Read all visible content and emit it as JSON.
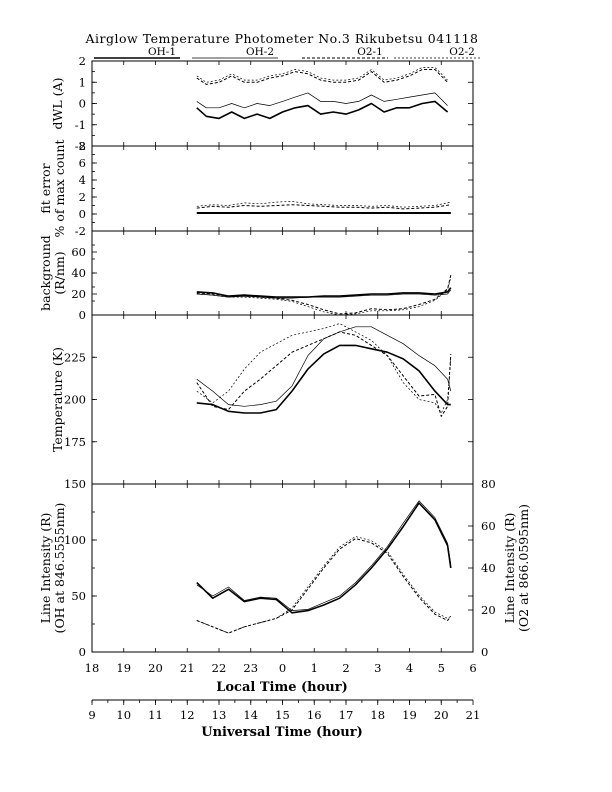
{
  "title": "Airglow Temperature Photometer No.3  Rikubetsu   041118",
  "legend": [
    {
      "name": "OH-1",
      "style": "solid-thick"
    },
    {
      "name": "OH-2",
      "style": "solid-thin"
    },
    {
      "name": "O2-1",
      "style": "dashed"
    },
    {
      "name": "O2-2",
      "style": "dotted"
    }
  ],
  "x_axes": {
    "local_time": {
      "label": "Local Time (hour)",
      "ticks": [
        "18",
        "19",
        "20",
        "21",
        "22",
        "23",
        "0",
        "1",
        "2",
        "3",
        "4",
        "5",
        "6"
      ]
    },
    "universal_time": {
      "label": "Universal Time (hour)",
      "ticks": [
        "9",
        "10",
        "11",
        "12",
        "13",
        "14",
        "15",
        "16",
        "17",
        "18",
        "19",
        "20",
        "21"
      ]
    }
  },
  "chart_data": [
    {
      "type": "line",
      "panel": "dwl",
      "ylabel": "dWL (A)",
      "ylim": [
        -2,
        2
      ],
      "yticks": [
        "2",
        "1",
        "0",
        "-1",
        "-2"
      ],
      "x_unit": "universal time (hour)",
      "series": [
        {
          "name": "OH-1",
          "x": [
            12.3,
            12.6,
            13.0,
            13.4,
            13.8,
            14.2,
            14.6,
            15.0,
            15.4,
            15.8,
            16.2,
            16.6,
            17.0,
            17.4,
            17.8,
            18.2,
            18.6,
            19.0,
            19.4,
            19.8,
            20.2
          ],
          "y": [
            -0.2,
            -0.6,
            -0.7,
            -0.4,
            -0.7,
            -0.5,
            -0.7,
            -0.4,
            -0.2,
            -0.1,
            -0.5,
            -0.4,
            -0.5,
            -0.3,
            0.0,
            -0.4,
            -0.2,
            -0.2,
            0.0,
            0.1,
            -0.4
          ]
        },
        {
          "name": "OH-2",
          "x": [
            12.3,
            12.6,
            13.0,
            13.4,
            13.8,
            14.2,
            14.6,
            15.0,
            15.4,
            15.8,
            16.2,
            16.6,
            17.0,
            17.4,
            17.8,
            18.2,
            18.6,
            19.0,
            19.4,
            19.8,
            20.2
          ],
          "y": [
            0.1,
            -0.2,
            -0.2,
            0.0,
            -0.2,
            0.0,
            -0.1,
            0.1,
            0.3,
            0.5,
            0.1,
            0.1,
            0.0,
            0.1,
            0.4,
            0.1,
            0.2,
            0.3,
            0.4,
            0.5,
            -0.1
          ]
        },
        {
          "name": "O2-1",
          "x": [
            12.3,
            12.6,
            13.0,
            13.4,
            13.8,
            14.2,
            14.6,
            15.0,
            15.4,
            15.8,
            16.2,
            16.6,
            17.0,
            17.4,
            17.8,
            18.2,
            18.6,
            19.0,
            19.4,
            19.8,
            20.2
          ],
          "y": [
            1.2,
            0.9,
            1.0,
            1.3,
            1.0,
            1.0,
            1.2,
            1.3,
            1.5,
            1.4,
            1.1,
            1.0,
            1.0,
            1.1,
            1.5,
            1.0,
            1.1,
            1.3,
            1.6,
            1.6,
            1.0
          ]
        },
        {
          "name": "O2-2",
          "x": [
            12.3,
            12.6,
            13.0,
            13.4,
            13.8,
            14.2,
            14.6,
            15.0,
            15.4,
            15.8,
            16.2,
            16.6,
            17.0,
            17.4,
            17.8,
            18.2,
            18.6,
            19.0,
            19.4,
            19.8,
            20.2
          ],
          "y": [
            1.3,
            1.0,
            1.1,
            1.4,
            1.1,
            1.1,
            1.3,
            1.4,
            1.6,
            1.5,
            1.2,
            1.1,
            1.1,
            1.2,
            1.6,
            1.1,
            1.2,
            1.4,
            1.7,
            1.7,
            1.1
          ]
        }
      ]
    },
    {
      "type": "line",
      "panel": "fit_error",
      "ylabel": [
        "fit error",
        "% of max count"
      ],
      "ylim": [
        -2,
        8
      ],
      "yticks": [
        "8",
        "6",
        "4",
        "2",
        "0",
        "-2"
      ],
      "x_unit": "universal time (hour)",
      "series": [
        {
          "name": "OH-1",
          "x": [
            12.3,
            13.5,
            15.0,
            16.5,
            18.0,
            19.5,
            20.3
          ],
          "y": [
            0.1,
            0.1,
            0.1,
            0.1,
            0.1,
            0.1,
            0.1
          ]
        },
        {
          "name": "OH-2",
          "x": [
            12.3,
            13.5,
            15.0,
            16.5,
            18.0,
            19.5,
            20.3
          ],
          "y": [
            0.2,
            0.2,
            0.2,
            0.2,
            0.2,
            0.2,
            0.2
          ]
        },
        {
          "name": "O2-1",
          "x": [
            12.3,
            12.8,
            13.3,
            13.8,
            14.3,
            14.8,
            15.3,
            15.8,
            16.3,
            16.8,
            17.3,
            17.8,
            18.3,
            18.8,
            19.3,
            19.8,
            20.3
          ],
          "y": [
            0.7,
            0.9,
            0.8,
            1.0,
            0.9,
            1.0,
            1.1,
            1.0,
            0.9,
            0.8,
            0.8,
            0.7,
            0.8,
            0.6,
            0.7,
            0.8,
            1.1
          ]
        },
        {
          "name": "O2-2",
          "x": [
            12.3,
            12.8,
            13.3,
            13.8,
            14.3,
            14.8,
            15.3,
            15.8,
            16.3,
            16.8,
            17.3,
            17.8,
            18.3,
            18.8,
            19.3,
            19.8,
            20.3
          ],
          "y": [
            0.9,
            1.1,
            1.0,
            1.3,
            1.2,
            1.4,
            1.5,
            1.2,
            1.1,
            1.0,
            1.0,
            0.9,
            1.0,
            0.8,
            0.9,
            1.0,
            1.4
          ]
        }
      ]
    },
    {
      "type": "line",
      "panel": "background",
      "ylabel": [
        "background",
        "(R/nm)"
      ],
      "ylim": [
        0,
        80
      ],
      "yticks": [
        "60",
        "40",
        "20",
        "0"
      ],
      "x_unit": "universal time (hour)",
      "series": [
        {
          "name": "OH-1",
          "x": [
            12.3,
            12.8,
            13.3,
            13.8,
            14.3,
            14.8,
            15.3,
            15.8,
            16.3,
            16.8,
            17.3,
            17.8,
            18.3,
            18.8,
            19.3,
            19.8,
            20.2,
            20.3
          ],
          "y": [
            22,
            21,
            18,
            19,
            18,
            17,
            17,
            17,
            18,
            18,
            19,
            20,
            20,
            21,
            21,
            20,
            22,
            26
          ]
        },
        {
          "name": "OH-2",
          "x": [
            12.3,
            12.8,
            13.3,
            13.8,
            14.3,
            14.8,
            15.3,
            15.8,
            16.3,
            16.8,
            17.3,
            17.8,
            18.3,
            18.8,
            19.3,
            19.8,
            20.2,
            20.3
          ],
          "y": [
            20,
            19,
            17,
            18,
            17,
            16,
            16,
            17,
            17,
            17,
            18,
            19,
            19,
            20,
            20,
            19,
            20,
            24
          ]
        },
        {
          "name": "O2-1",
          "x": [
            12.3,
            12.8,
            13.3,
            13.8,
            14.3,
            14.8,
            15.3,
            15.8,
            16.3,
            16.8,
            17.3,
            17.8,
            18.3,
            18.8,
            19.3,
            19.8,
            20.2,
            20.3
          ],
          "y": [
            21,
            20,
            18,
            18,
            17,
            16,
            14,
            10,
            5,
            1,
            2,
            6,
            5,
            6,
            10,
            15,
            25,
            38
          ]
        },
        {
          "name": "O2-2",
          "x": [
            12.3,
            12.8,
            13.3,
            13.8,
            14.3,
            14.8,
            15.3,
            15.8,
            16.3,
            16.8,
            17.3,
            17.8,
            18.3,
            18.8,
            19.3,
            19.8,
            20.2,
            20.3
          ],
          "y": [
            20,
            19,
            17,
            17,
            16,
            15,
            13,
            8,
            3,
            0,
            1,
            4,
            4,
            5,
            8,
            14,
            24,
            36
          ]
        }
      ]
    },
    {
      "type": "line",
      "panel": "temperature",
      "ylabel": "Temperature (K)",
      "ylim": [
        150,
        250
      ],
      "yticks": [
        "225",
        "200",
        "175"
      ],
      "x_unit": "universal time (hour)",
      "series": [
        {
          "name": "OH-1",
          "x": [
            12.3,
            12.8,
            13.3,
            13.8,
            14.3,
            14.8,
            15.3,
            15.8,
            16.3,
            16.8,
            17.3,
            17.8,
            18.3,
            18.8,
            19.3,
            19.8,
            20.2,
            20.3
          ],
          "y": [
            198,
            197,
            193,
            192,
            192,
            194,
            205,
            218,
            227,
            232,
            232,
            230,
            228,
            224,
            217,
            205,
            197,
            197
          ]
        },
        {
          "name": "OH-2",
          "x": [
            12.3,
            12.8,
            13.3,
            13.8,
            14.3,
            14.8,
            15.3,
            15.8,
            16.3,
            16.8,
            17.3,
            17.8,
            18.3,
            18.8,
            19.3,
            19.8,
            20.2,
            20.3
          ],
          "y": [
            212,
            205,
            197,
            196,
            197,
            199,
            208,
            226,
            236,
            240,
            243,
            243,
            238,
            233,
            226,
            220,
            212,
            205
          ]
        },
        {
          "name": "O2-1",
          "x": [
            12.3,
            12.8,
            13.3,
            13.8,
            14.3,
            14.8,
            15.3,
            15.8,
            16.3,
            16.8,
            17.3,
            17.8,
            18.3,
            18.8,
            19.3,
            19.8,
            20.0,
            20.2,
            20.3
          ],
          "y": [
            210,
            196,
            194,
            205,
            212,
            220,
            228,
            232,
            236,
            240,
            238,
            232,
            226,
            214,
            202,
            203,
            190,
            196,
            227
          ]
        },
        {
          "name": "O2-2",
          "x": [
            12.3,
            12.8,
            13.3,
            13.8,
            14.3,
            14.8,
            15.3,
            15.8,
            16.3,
            16.8,
            17.3,
            17.8,
            18.3,
            18.8,
            19.3,
            19.8,
            20.0,
            20.2,
            20.3
          ],
          "y": [
            205,
            198,
            205,
            218,
            228,
            233,
            238,
            240,
            242,
            245,
            240,
            235,
            226,
            210,
            200,
            198,
            192,
            200,
            224
          ]
        }
      ]
    },
    {
      "type": "line",
      "panel": "line_intensity",
      "ylabel": [
        "Line Intensity (R)",
        "(OH at 846.5555nm)"
      ],
      "ylim": [
        0,
        150
      ],
      "yticks": [
        "150",
        "100",
        "50",
        "0"
      ],
      "y2label": [
        "Line Intensity (R)",
        "(O2 at 866.0595nm)"
      ],
      "y2lim": [
        0,
        80
      ],
      "y2ticks": [
        "80",
        "60",
        "40",
        "20",
        "0"
      ],
      "x_unit": "universal time (hour)",
      "series": [
        {
          "name": "OH-1",
          "axis": "left",
          "x": [
            12.3,
            12.8,
            13.3,
            13.8,
            14.3,
            14.8,
            15.3,
            15.8,
            16.3,
            16.8,
            17.3,
            17.8,
            18.3,
            18.8,
            19.3,
            19.8,
            20.2,
            20.3
          ],
          "y": [
            62,
            48,
            56,
            45,
            48,
            47,
            35,
            37,
            42,
            48,
            60,
            75,
            92,
            112,
            133,
            118,
            95,
            75
          ]
        },
        {
          "name": "OH-2",
          "axis": "left",
          "x": [
            12.3,
            12.8,
            13.3,
            13.8,
            14.3,
            14.8,
            15.3,
            15.8,
            16.3,
            16.8,
            17.3,
            17.8,
            18.3,
            18.8,
            19.3,
            19.8,
            20.2,
            20.3
          ],
          "y": [
            60,
            50,
            58,
            46,
            49,
            48,
            37,
            38,
            44,
            50,
            62,
            77,
            94,
            115,
            135,
            120,
            97,
            78
          ]
        },
        {
          "name": "O2-1",
          "axis": "right",
          "x": [
            12.3,
            12.8,
            13.3,
            13.8,
            14.3,
            14.8,
            15.3,
            15.8,
            16.3,
            16.8,
            17.3,
            17.8,
            18.3,
            18.8,
            19.3,
            19.8,
            20.2,
            20.3
          ],
          "y": [
            15,
            12,
            9,
            12,
            14,
            16,
            20,
            30,
            40,
            49,
            54,
            52,
            47,
            36,
            26,
            18,
            15,
            17
          ]
        },
        {
          "name": "O2-2",
          "axis": "right",
          "x": [
            12.3,
            12.8,
            13.3,
            13.8,
            14.3,
            14.8,
            15.3,
            15.8,
            16.3,
            16.8,
            17.3,
            17.8,
            18.3,
            18.8,
            19.3,
            19.8,
            20.2,
            20.3
          ],
          "y": [
            15,
            12,
            9,
            12,
            14,
            16,
            21,
            31,
            41,
            50,
            55,
            53,
            48,
            37,
            27,
            19,
            16,
            17
          ]
        }
      ]
    }
  ]
}
